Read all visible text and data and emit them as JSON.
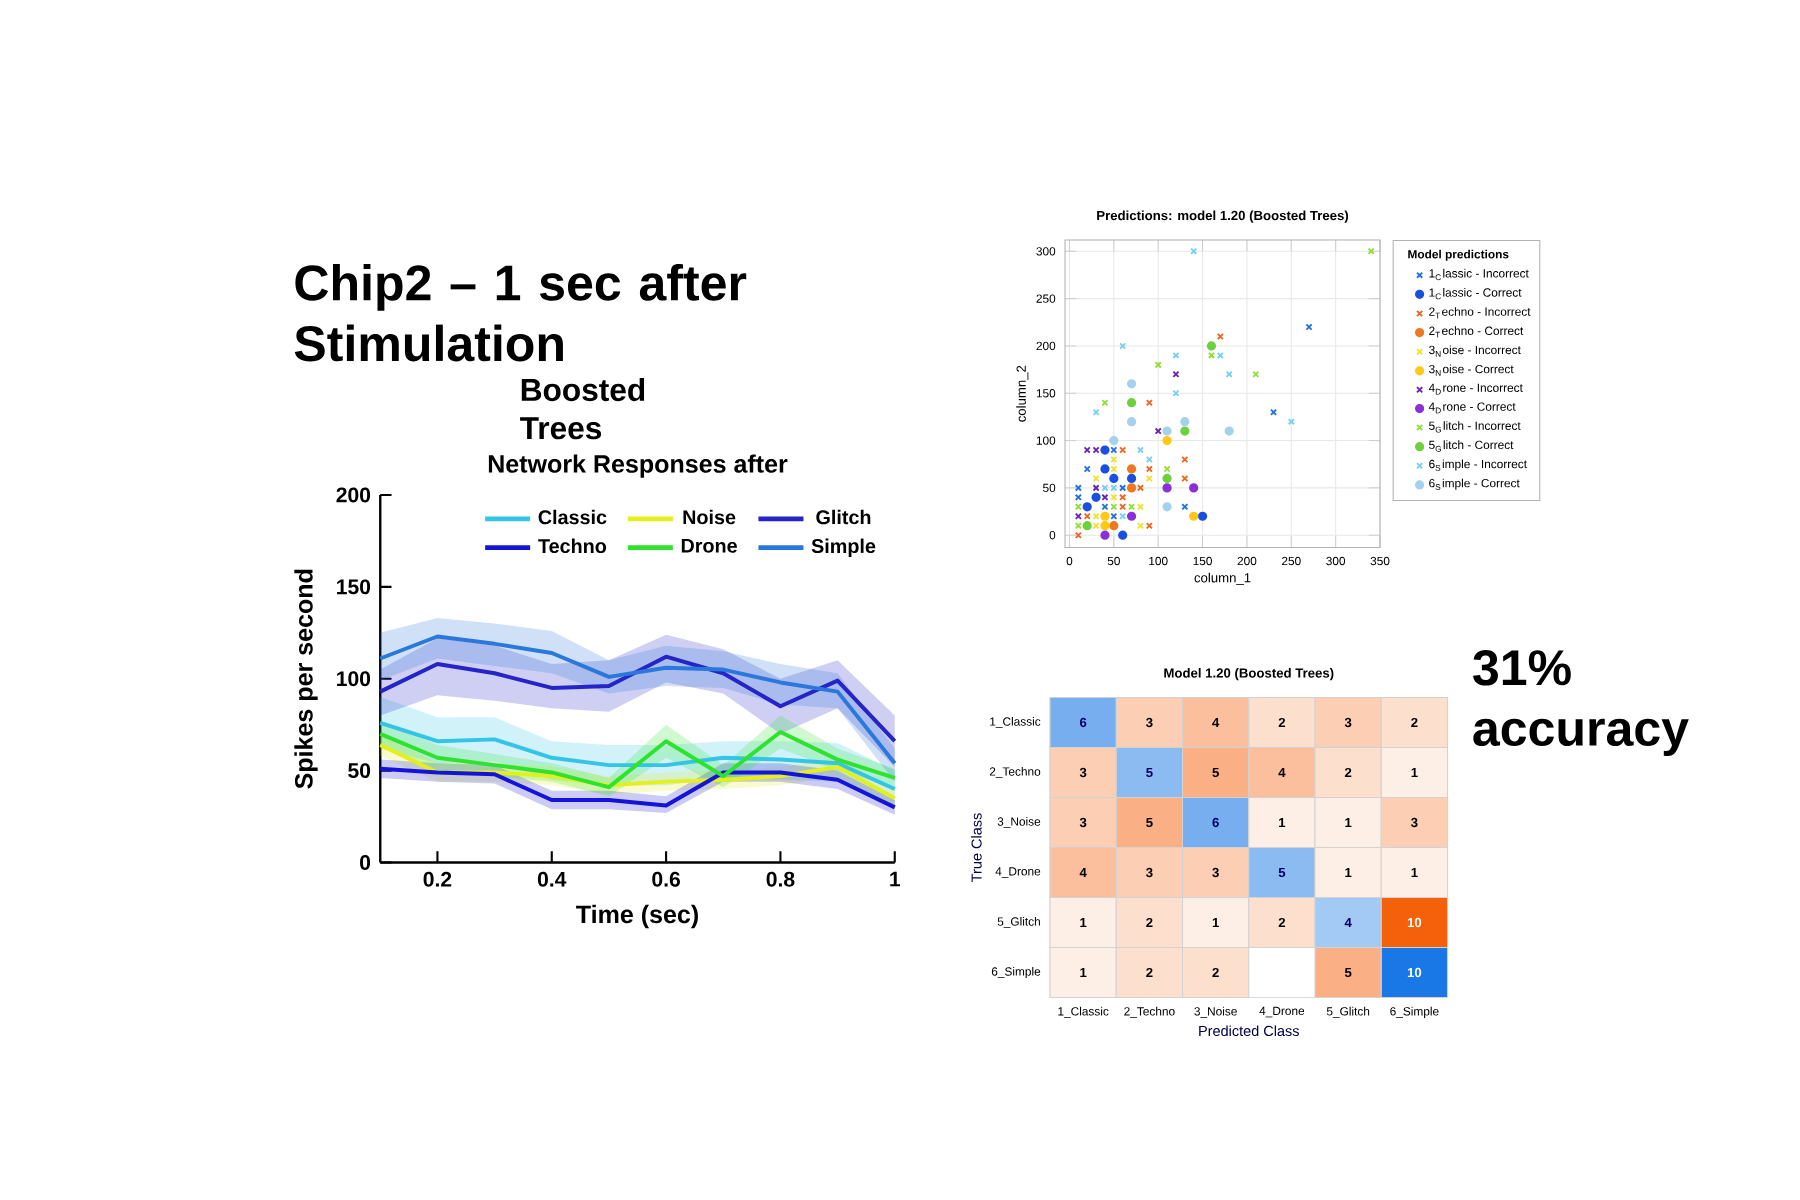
{
  "chart_data": [
    {
      "type": "line",
      "title": "Network Responses after",
      "xlabel": "Time (sec)",
      "ylabel": "Spikes per second",
      "annotations": [
        "Chip2 – 1 sec after Stimulation",
        "Boosted Trees"
      ],
      "x": [
        0.1,
        0.2,
        0.3,
        0.4,
        0.5,
        0.6,
        0.7,
        0.8,
        0.9,
        1.0
      ],
      "xlim": [
        0.1,
        1
      ],
      "xticks": [
        0.2,
        0.4,
        0.6,
        0.8,
        1
      ],
      "ylim": [
        0,
        200
      ],
      "yticks": [
        0,
        50,
        100,
        150,
        200
      ],
      "legend": "top right",
      "series": [
        {
          "name": "Classic",
          "color": "#33c4e8",
          "values": [
            76,
            66,
            67,
            57,
            53,
            53,
            57,
            56,
            54,
            40
          ],
          "lower": [
            62,
            54,
            55,
            45,
            42,
            42,
            46,
            45,
            44,
            30
          ],
          "upper": [
            90,
            79,
            79,
            66,
            64,
            64,
            66,
            66,
            65,
            50
          ]
        },
        {
          "name": "Noise",
          "color": "#e4ef1e",
          "values": [
            64,
            49,
            49,
            47,
            42,
            44,
            45,
            47,
            52,
            35
          ],
          "lower": [
            58,
            44,
            44,
            42,
            37,
            39,
            40,
            42,
            47,
            31
          ],
          "upper": [
            70,
            54,
            54,
            52,
            47,
            49,
            50,
            52,
            57,
            39
          ]
        },
        {
          "name": "Glitch",
          "color": "#2424c8",
          "values": [
            93,
            108,
            103,
            95,
            96,
            112,
            103,
            85,
            99,
            66
          ],
          "lower": [
            80,
            91,
            88,
            84,
            82,
            98,
            92,
            70,
            84,
            52
          ],
          "upper": [
            105,
            122,
            118,
            108,
            110,
            124,
            116,
            100,
            110,
            80
          ]
        },
        {
          "name": "Techno",
          "color": "#1414d8",
          "values": [
            51,
            49,
            48,
            34,
            34,
            31,
            49,
            49,
            45,
            30
          ],
          "lower": [
            46,
            44,
            43,
            29,
            29,
            27,
            44,
            44,
            40,
            26
          ],
          "upper": [
            56,
            54,
            53,
            39,
            39,
            36,
            54,
            54,
            50,
            34
          ]
        },
        {
          "name": "Drone",
          "color": "#2ee22e",
          "values": [
            70,
            57,
            53,
            49,
            41,
            66,
            47,
            71,
            56,
            46
          ],
          "lower": [
            63,
            50,
            47,
            44,
            36,
            57,
            41,
            62,
            50,
            41
          ],
          "upper": [
            77,
            64,
            59,
            54,
            46,
            75,
            53,
            80,
            62,
            51
          ]
        },
        {
          "name": "Simple",
          "color": "#2a78dc",
          "values": [
            111,
            123,
            119,
            114,
            101,
            106,
            105,
            98,
            93,
            54
          ],
          "lower": [
            99,
            111,
            107,
            103,
            92,
            96,
            95,
            86,
            84,
            44
          ],
          "upper": [
            125,
            133,
            130,
            126,
            110,
            118,
            115,
            108,
            103,
            62
          ]
        }
      ]
    },
    {
      "type": "scatter",
      "title": "Predictions: model 1.20 (Boosted Trees)",
      "xlabel": "column_1",
      "ylabel": "column_2",
      "legend_title": "Model predictions",
      "xlim": [
        -5,
        350
      ],
      "xticks": [
        0,
        50,
        100,
        150,
        200,
        250,
        300,
        350
      ],
      "ylim": [
        -13,
        312
      ],
      "yticks": [
        0,
        50,
        100,
        150,
        200,
        250,
        300
      ],
      "grid": true,
      "legend": "right",
      "series": [
        {
          "name": "1$_{C}$lassic - Incorrect",
          "color": "#1f6fe0",
          "marker": "cross",
          "x": [
            50,
            40,
            130,
            10,
            10,
            60,
            20,
            50,
            230,
            270
          ],
          "values": [
            20,
            30,
            30,
            40,
            50,
            50,
            70,
            90,
            130,
            220
          ]
        },
        {
          "name": "1$_{C}$lassic - Correct",
          "color": "#1a50e0",
          "marker": "circle",
          "x": [
            60,
            150,
            20,
            30,
            50,
            70,
            40,
            40
          ],
          "values": [
            0,
            20,
            30,
            40,
            60,
            60,
            70,
            90
          ]
        },
        {
          "name": "2$_{T}$echno - Incorrect",
          "color": "#f0641e",
          "marker": "cross",
          "x": [
            10,
            90,
            20,
            60,
            60,
            80,
            130,
            90,
            130,
            60,
            90,
            170
          ],
          "values": [
            0,
            10,
            20,
            30,
            40,
            50,
            60,
            70,
            80,
            90,
            140,
            210
          ]
        },
        {
          "name": "2$_{T}$echno - Correct",
          "color": "#f07820",
          "marker": "circle",
          "x": [
            50,
            70,
            70
          ],
          "values": [
            10,
            50,
            70
          ]
        },
        {
          "name": "3$_{N}$oise - Incorrect",
          "color": "#f2e12a",
          "marker": "cross",
          "x": [
            30,
            80,
            30,
            80,
            50,
            30,
            90,
            50,
            50
          ],
          "values": [
            10,
            10,
            20,
            30,
            40,
            60,
            60,
            70,
            80
          ]
        },
        {
          "name": "3$_{N}$oise - Correct",
          "color": "#ffc814",
          "marker": "circle",
          "x": [
            40,
            40,
            140,
            110
          ],
          "values": [
            10,
            20,
            20,
            100
          ]
        },
        {
          "name": "4$_{D}$rone - Incorrect",
          "color": "#6a1fb0",
          "marker": "cross",
          "x": [
            10,
            40,
            30,
            20,
            30,
            100,
            120
          ],
          "values": [
            20,
            40,
            50,
            90,
            90,
            110,
            170
          ]
        },
        {
          "name": "4$_{D}$rone - Correct",
          "color": "#8a30d8",
          "marker": "circle",
          "x": [
            40,
            70,
            110,
            140
          ],
          "values": [
            0,
            20,
            50,
            50
          ]
        },
        {
          "name": "5$_{G}$litch - Incorrect",
          "color": "#8ee030",
          "marker": "cross",
          "x": [
            10,
            10,
            50,
            70,
            110,
            40,
            210,
            100,
            160,
            340
          ],
          "values": [
            10,
            30,
            30,
            30,
            70,
            140,
            170,
            180,
            190,
            300
          ]
        },
        {
          "name": "5$_{G}$litch - Correct",
          "color": "#6cd23c",
          "marker": "circle",
          "x": [
            20,
            110,
            130,
            70,
            160
          ],
          "values": [
            10,
            60,
            110,
            140,
            200
          ]
        },
        {
          "name": "6$_{S}$imple - Incorrect",
          "color": "#74d0f0",
          "marker": "cross",
          "x": [
            60,
            40,
            50,
            90,
            80,
            250,
            30,
            120,
            180,
            120,
            170,
            60,
            140
          ],
          "values": [
            20,
            50,
            50,
            80,
            90,
            120,
            130,
            150,
            170,
            190,
            190,
            200,
            300
          ]
        },
        {
          "name": "6$_{S}$imple - Correct",
          "color": "#a4d2ec",
          "marker": "circle",
          "x": [
            110,
            50,
            110,
            180,
            70,
            130,
            70
          ],
          "values": [
            30,
            100,
            110,
            110,
            120,
            120,
            160
          ]
        }
      ]
    },
    {
      "type": "heatmap",
      "title": "Model 1.20 (Boosted Trees)",
      "xlabel": "Predicted Class",
      "ylabel": "True Class",
      "annotations": [
        "31% accuracy"
      ],
      "categories": [
        "1_Classic",
        "2_Techno",
        "3_Noise",
        "4_Drone",
        "5_Glitch",
        "6_Simple"
      ],
      "y_categories": [
        "1_Classic",
        "2_Techno",
        "3_Noise",
        "4_Drone",
        "5_Glitch",
        "6_Simple"
      ],
      "data_labels": true,
      "cells": [
        [
          6,
          3,
          4,
          2,
          3,
          2
        ],
        [
          3,
          5,
          5,
          4,
          2,
          1
        ],
        [
          3,
          5,
          6,
          1,
          1,
          3
        ],
        [
          4,
          3,
          3,
          5,
          1,
          1
        ],
        [
          1,
          2,
          1,
          2,
          4,
          10
        ],
        [
          1,
          2,
          2,
          null,
          5,
          10
        ]
      ]
    }
  ]
}
